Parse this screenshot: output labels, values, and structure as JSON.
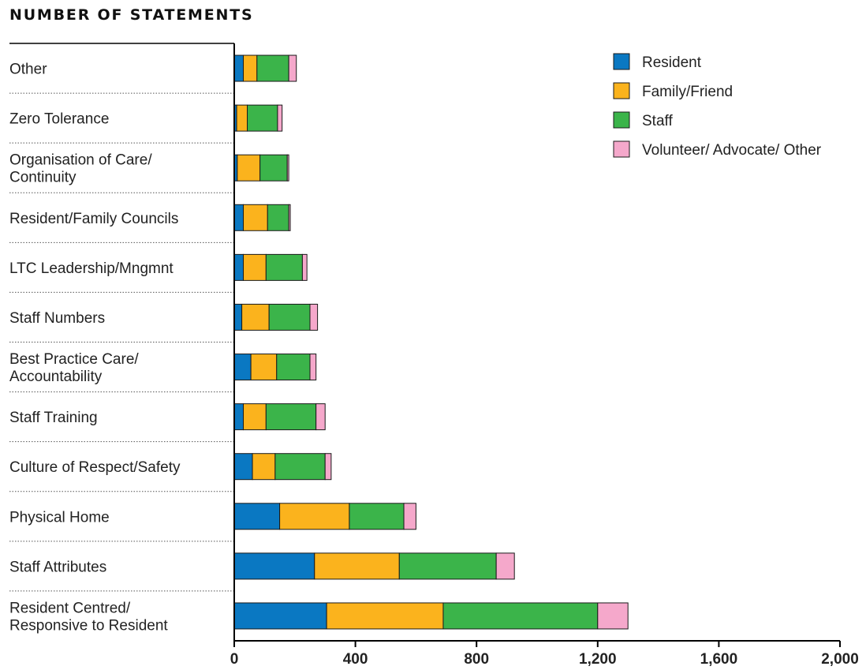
{
  "chart_data": {
    "type": "bar",
    "orientation": "horizontal",
    "stacked": true,
    "title": "NUMBER OF STATEMENTS",
    "categories": [
      [
        "Other"
      ],
      [
        "Zero Tolerance"
      ],
      [
        "Organisation of Care/",
        "Continuity"
      ],
      [
        "Resident/Family Councils"
      ],
      [
        "LTC Leadership/Mngmnt"
      ],
      [
        "Staff Numbers"
      ],
      [
        "Best Practice Care/",
        "Accountability"
      ],
      [
        "Staff Training"
      ],
      [
        "Culture of Respect/Safety"
      ],
      [
        "Physical Home"
      ],
      [
        "Staff Attributes"
      ],
      [
        "Resident Centred/",
        "Responsive to Resident"
      ]
    ],
    "series": [
      {
        "name": "Resident",
        "color": "#0a78c2",
        "values": [
          30,
          8,
          10,
          30,
          30,
          25,
          55,
          30,
          60,
          150,
          265,
          305
        ]
      },
      {
        "name": "Family/Friend",
        "color": "#fbb31d",
        "values": [
          45,
          35,
          75,
          80,
          75,
          90,
          85,
          75,
          75,
          230,
          280,
          385
        ]
      },
      {
        "name": "Staff",
        "color": "#3bb44a",
        "values": [
          105,
          100,
          90,
          70,
          120,
          135,
          110,
          165,
          165,
          180,
          320,
          510
        ]
      },
      {
        "name": "Volunteer/ Advocate/ Other",
        "color": "#f5a8cb",
        "values": [
          25,
          15,
          5,
          5,
          15,
          25,
          20,
          30,
          20,
          40,
          60,
          100
        ]
      }
    ],
    "xlim": [
      0,
      2000
    ],
    "xticks": [
      "0",
      "400",
      "800",
      "1,200",
      "1,600",
      "2,000"
    ],
    "xtick_values": [
      0,
      400,
      800,
      1200,
      1600,
      2000
    ],
    "grid": false,
    "legend_position": "top-right"
  }
}
